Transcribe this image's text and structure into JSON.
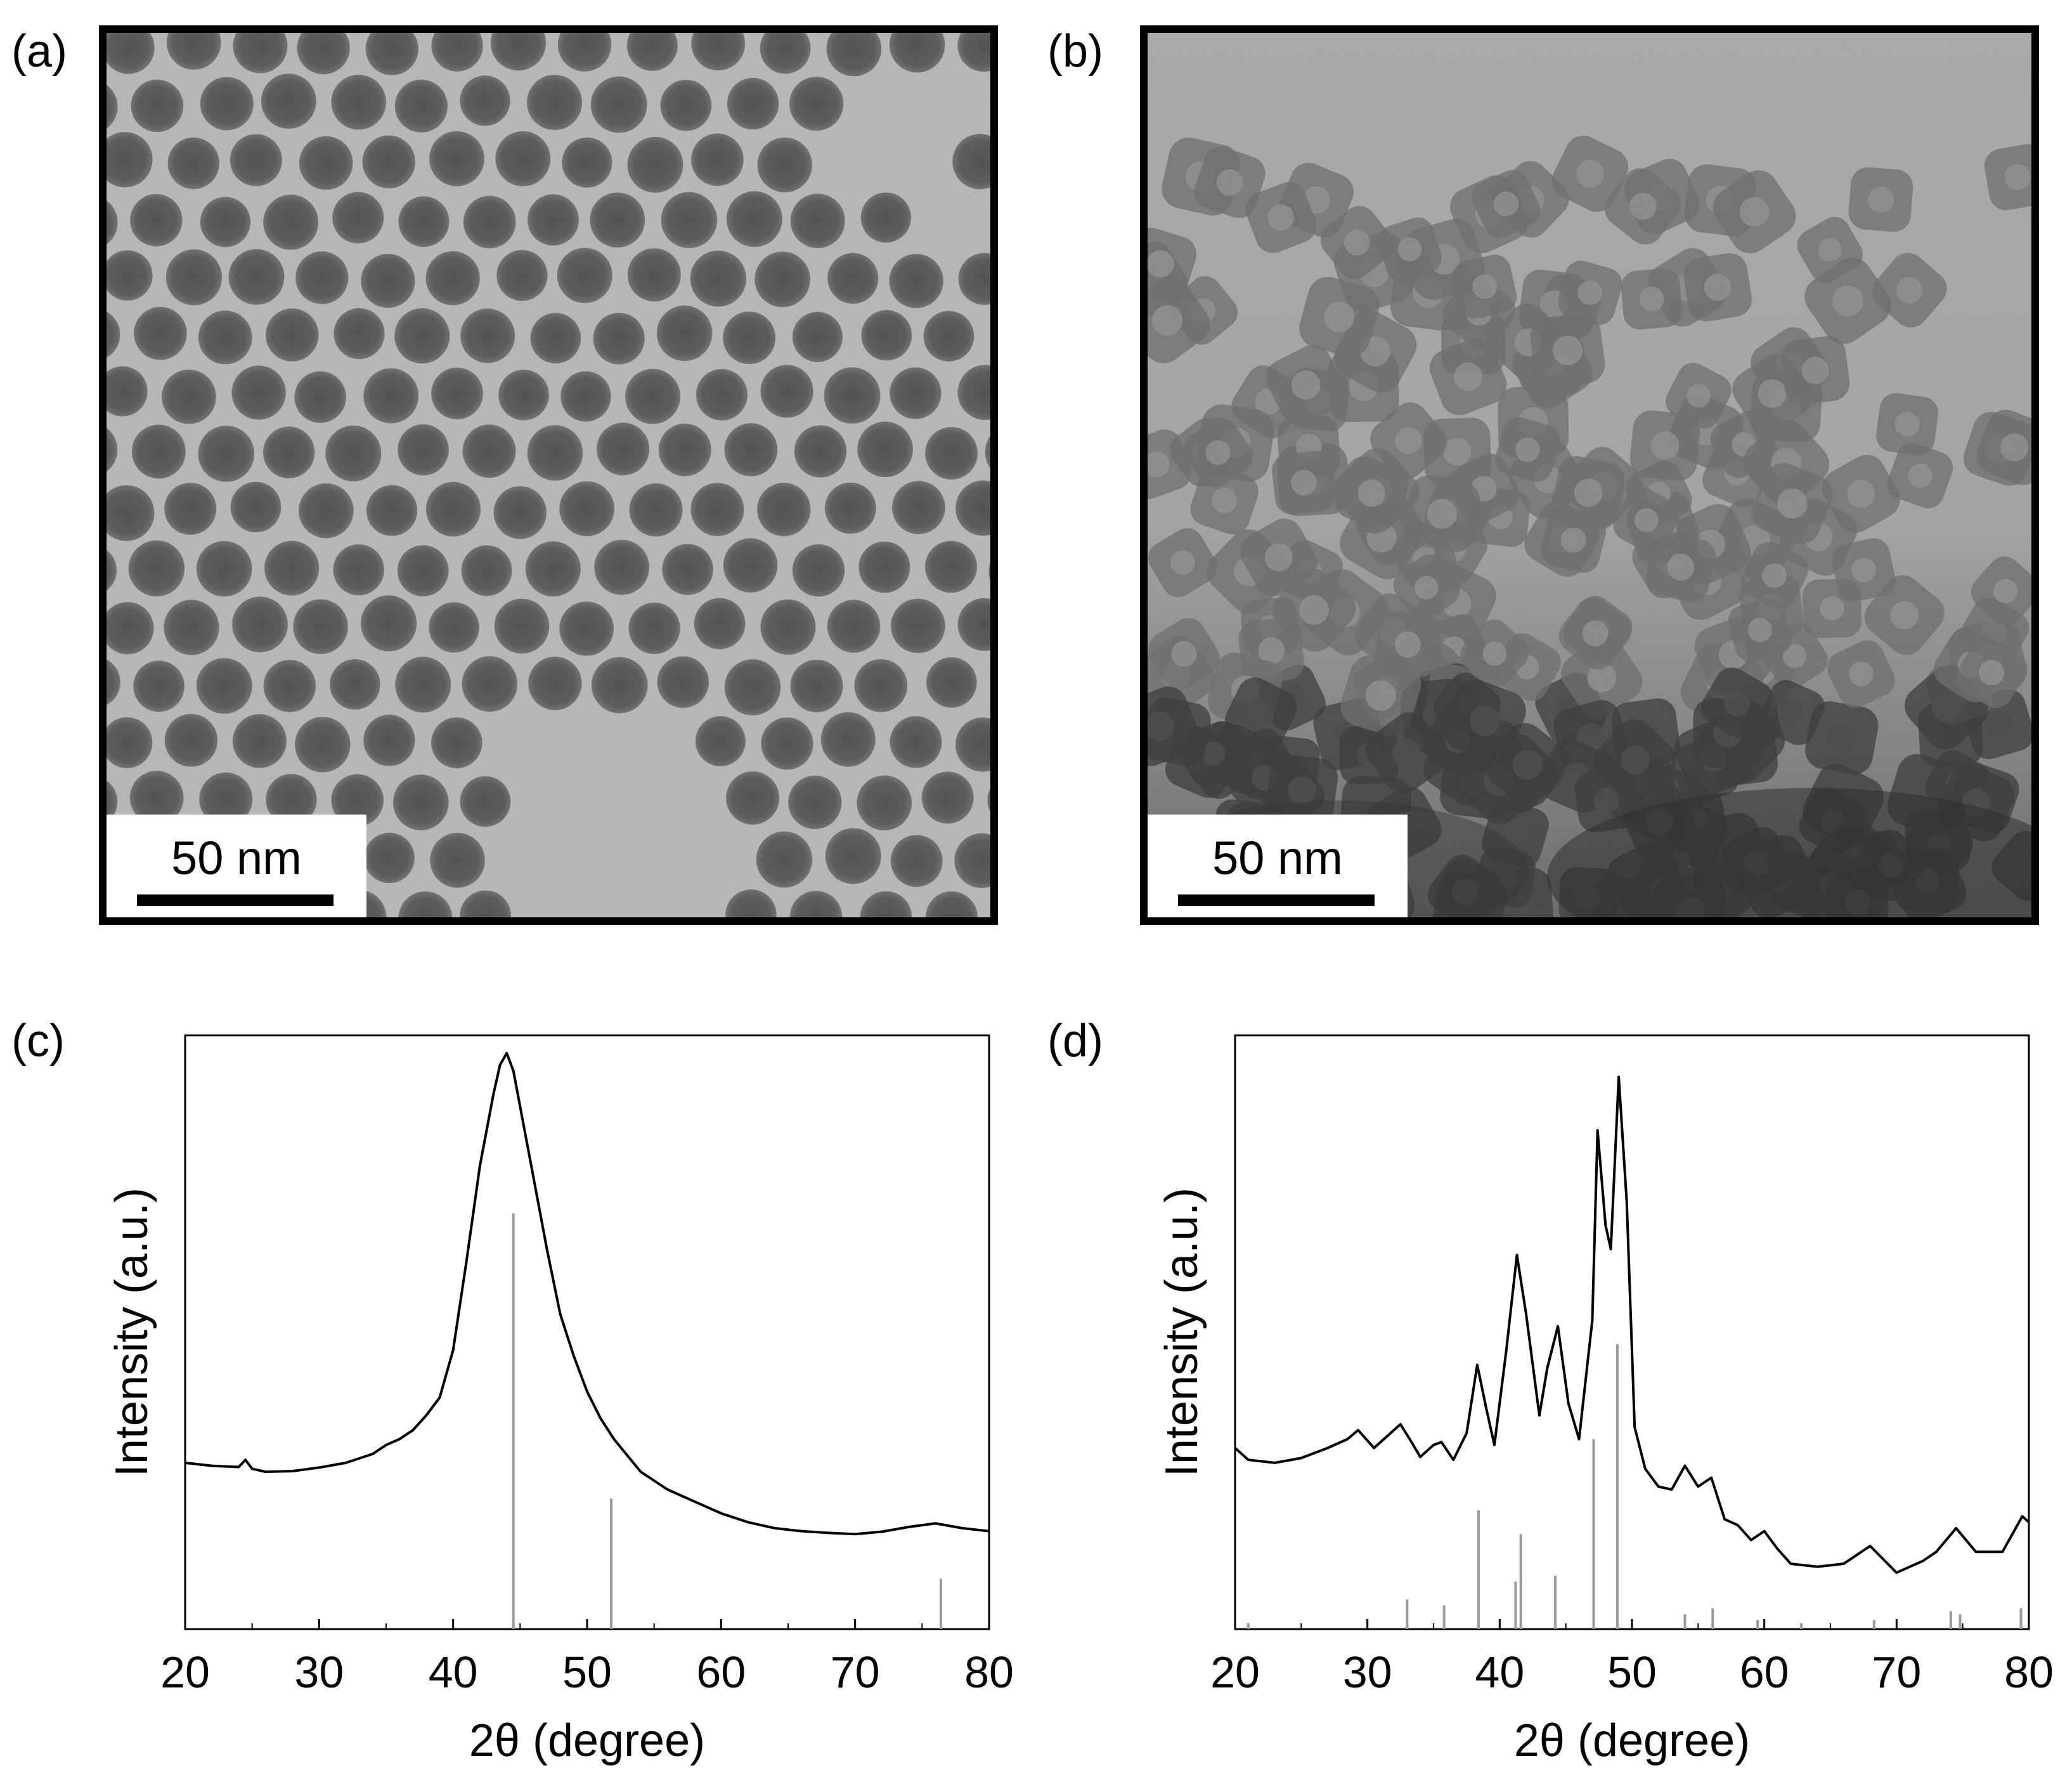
{
  "panels": {
    "a": {
      "label": "(a)",
      "scale_bar": "50 nm"
    },
    "b": {
      "label": "(b)",
      "scale_bar": "50 nm"
    },
    "c": {
      "label": "(c)"
    },
    "d": {
      "label": "(d)"
    }
  },
  "chart_data": [
    {
      "id": "c",
      "type": "line",
      "xlabel": "2θ (degree)",
      "ylabel": "Intensity (a.u.)",
      "xlim": [
        20,
        80
      ],
      "ylim": [
        0,
        100
      ],
      "xticks": [
        "20",
        "30",
        "40",
        "50",
        "60",
        "70",
        "80"
      ],
      "legend": "none",
      "grid": false,
      "series": [
        {
          "x": [
            20,
            22,
            24,
            24.5,
            25,
            26,
            28,
            30,
            32,
            34,
            35,
            36,
            37,
            38,
            39,
            40,
            41,
            42,
            43,
            43.5,
            44,
            44.5,
            45,
            46,
            47,
            48,
            49,
            50,
            51,
            52,
            54,
            56,
            58,
            60,
            62,
            64,
            66,
            68,
            70,
            72,
            74,
            76,
            78,
            80
          ],
          "y": [
            28,
            27.5,
            27.3,
            28.5,
            27,
            26.5,
            26.6,
            27.2,
            28,
            29.5,
            31,
            32,
            33.5,
            36,
            39,
            47,
            62,
            78,
            90,
            95,
            97,
            94,
            88,
            76,
            64,
            53,
            46,
            40,
            35.5,
            32,
            26.5,
            23.5,
            21.5,
            19.5,
            18,
            17,
            16.5,
            16.2,
            16,
            16.4,
            17.2,
            17.8,
            17,
            16.5
          ]
        }
      ],
      "reference_lines": [
        {
          "x": 44.5,
          "h": 70
        },
        {
          "x": 51.8,
          "h": 22
        },
        {
          "x": 76.4,
          "h": 8.5
        }
      ]
    },
    {
      "id": "d",
      "type": "line",
      "xlabel": "2θ (degree)",
      "ylabel": "Intensity (a.u.)",
      "xlim": [
        20,
        80
      ],
      "ylim": [
        0,
        100
      ],
      "xticks": [
        "20",
        "30",
        "40",
        "50",
        "60",
        "70",
        "80"
      ],
      "legend": "none",
      "grid": false,
      "series": [
        {
          "x": [
            20,
            21,
            23,
            25,
            27,
            28.5,
            29.3,
            30.5,
            31.5,
            32.5,
            33.2,
            34,
            35,
            35.6,
            36.5,
            37.5,
            38.3,
            39,
            39.6,
            40.5,
            41.3,
            42,
            43,
            43.6,
            44.4,
            45.2,
            46,
            47,
            47.4,
            48,
            48.4,
            49,
            49.6,
            50.2,
            51,
            52,
            53,
            54,
            55,
            56,
            57,
            58,
            59,
            60,
            61,
            62,
            64,
            66,
            68,
            70,
            72,
            73,
            74.5,
            76,
            78,
            79.5,
            80
          ],
          "y": [
            30.5,
            28.5,
            28,
            28.8,
            30.5,
            32,
            33.5,
            30.5,
            32.5,
            34.5,
            32,
            29,
            31,
            31.5,
            28.5,
            33,
            44.5,
            37,
            31,
            47,
            63,
            53,
            36,
            44,
            51,
            38,
            32,
            52,
            84,
            68,
            64,
            93,
            72,
            34,
            27,
            24,
            23.5,
            27.5,
            24,
            25.5,
            18.5,
            17.5,
            15,
            16.5,
            13.5,
            11,
            10.5,
            11,
            14,
            9.5,
            11.5,
            13,
            17,
            13,
            13,
            19,
            18
          ]
        }
      ],
      "reference_lines": [
        {
          "x": 21,
          "h": 1
        },
        {
          "x": 33,
          "h": 5
        },
        {
          "x": 35.8,
          "h": 4
        },
        {
          "x": 38.4,
          "h": 20
        },
        {
          "x": 41.2,
          "h": 8
        },
        {
          "x": 41.6,
          "h": 16
        },
        {
          "x": 44.2,
          "h": 9
        },
        {
          "x": 47.1,
          "h": 32
        },
        {
          "x": 48.9,
          "h": 48
        },
        {
          "x": 54,
          "h": 2.5
        },
        {
          "x": 56.1,
          "h": 3.5
        },
        {
          "x": 59.5,
          "h": 1.5
        },
        {
          "x": 62.8,
          "h": 1
        },
        {
          "x": 68.3,
          "h": 1.5
        },
        {
          "x": 74.1,
          "h": 3
        },
        {
          "x": 74.8,
          "h": 2.5
        },
        {
          "x": 79.4,
          "h": 3.5
        }
      ]
    }
  ]
}
